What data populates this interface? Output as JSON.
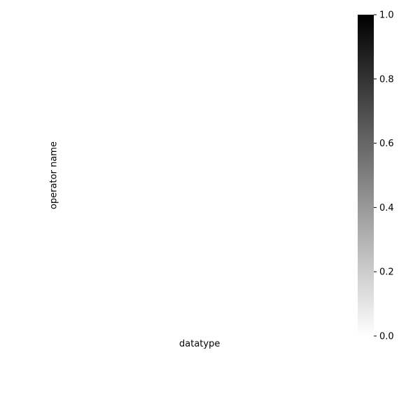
{
  "chart_data": {
    "type": "heatmap",
    "title": "",
    "xlabel": "datatype",
    "ylabel": "operator name",
    "x_categories": [],
    "y_categories": [],
    "values": [],
    "colorbar": {
      "min": 0.0,
      "max": 1.0,
      "colormap": "grayscale",
      "low_color": "#ffffff",
      "high_color": "#000000",
      "ticks": [
        0.0,
        0.2,
        0.4,
        0.6,
        0.8,
        1.0
      ],
      "tick_labels": [
        "0.0",
        "0.2",
        "0.4",
        "0.6",
        "0.8",
        "1.0"
      ]
    },
    "grid": false,
    "legend": "none"
  }
}
